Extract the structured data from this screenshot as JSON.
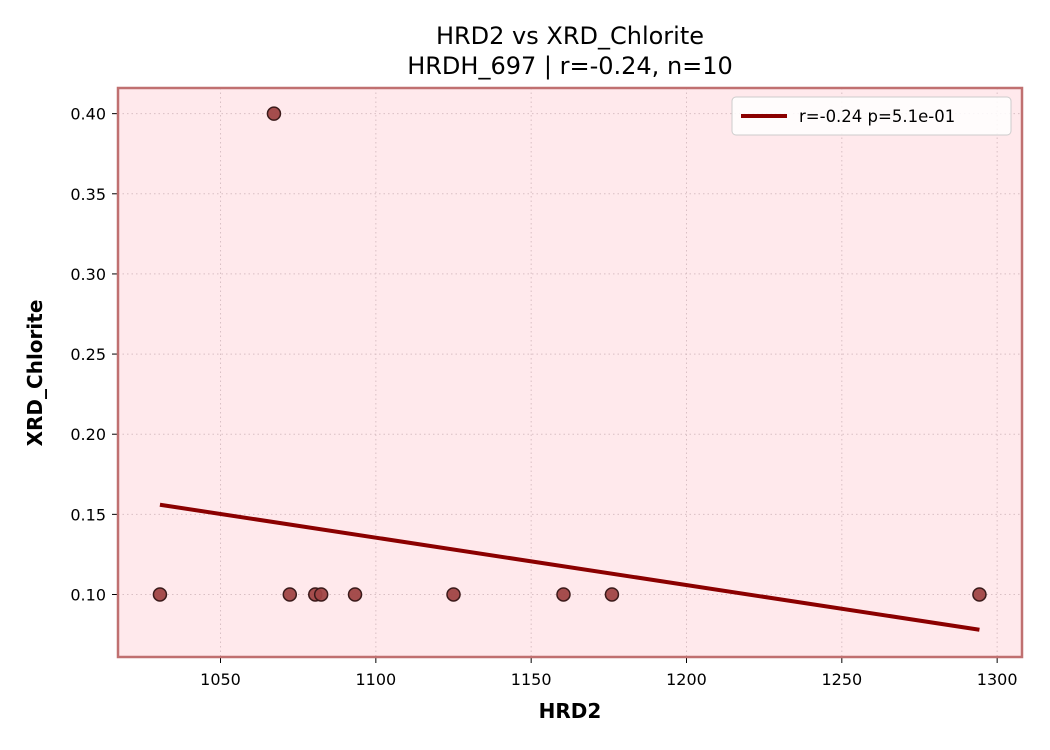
{
  "chart_data": {
    "type": "scatter",
    "title": "HRD2 vs XRD_Chlorite",
    "subtitle": "HRDH_697 | r=-0.24, n=10",
    "xlabel": "HRD2",
    "ylabel": "XRD_Chlorite",
    "xlim": [
      1017,
      1308
    ],
    "ylim": [
      0.061,
      0.416
    ],
    "xticks": [
      1050,
      1100,
      1150,
      1200,
      1250,
      1300
    ],
    "yticks": [
      0.1,
      0.15,
      0.2,
      0.25,
      0.3,
      0.35,
      0.4
    ],
    "xtick_labels": [
      "1050",
      "1100",
      "1150",
      "1200",
      "1250",
      "1300"
    ],
    "ytick_labels": [
      "0.10",
      "0.15",
      "0.20",
      "0.25",
      "0.30",
      "0.35",
      "0.40"
    ],
    "grid": true,
    "legend_position": "top-right",
    "series": [
      {
        "kind": "points",
        "x": [
          1030.5,
          1067.2,
          1072.3,
          1080.5,
          1082.4,
          1093.3,
          1125.0,
          1160.4,
          1176.0,
          1294.3
        ],
        "y": [
          0.1,
          0.4,
          0.1,
          0.1,
          0.1,
          0.1,
          0.1,
          0.1,
          0.1,
          0.1
        ]
      },
      {
        "kind": "fit-line",
        "name": "r=-0.24  p=5.1e-01",
        "x": [
          1030.5,
          1294.3
        ],
        "y": [
          0.156,
          0.078
        ]
      }
    ],
    "colors": {
      "plot_background": "#ffe9ec",
      "frame": "#c07070",
      "point_fill": "#a04545",
      "point_edge": "#3a1a1a",
      "fit_line": "#8b0000",
      "grid": "#d9bfc4"
    }
  }
}
